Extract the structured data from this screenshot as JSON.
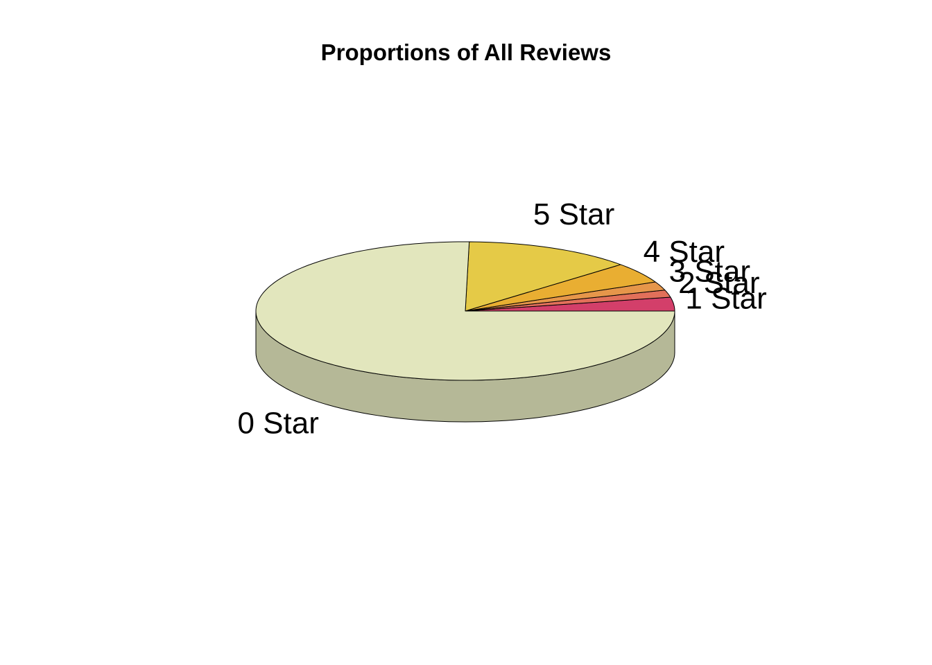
{
  "chart_data": {
    "type": "pie",
    "variant": "3d",
    "title": "Proportions of All Reviews",
    "start_angle_deg": 0,
    "direction": "counterclockwise",
    "slices": [
      {
        "label": "1 Star",
        "value": 3.2,
        "color": "#D33F6A"
      },
      {
        "label": "2 Star",
        "value": 1.7,
        "color": "#E2705A"
      },
      {
        "label": "3 Star",
        "value": 2.0,
        "color": "#E6964A"
      },
      {
        "label": "4 Star",
        "value": 4.8,
        "color": "#E9AE32"
      },
      {
        "label": "5 Star",
        "value": 13.0,
        "color": "#E5CA47"
      },
      {
        "label": "0 Star",
        "value": 75.3,
        "color": "#E2E6BD"
      }
    ]
  }
}
